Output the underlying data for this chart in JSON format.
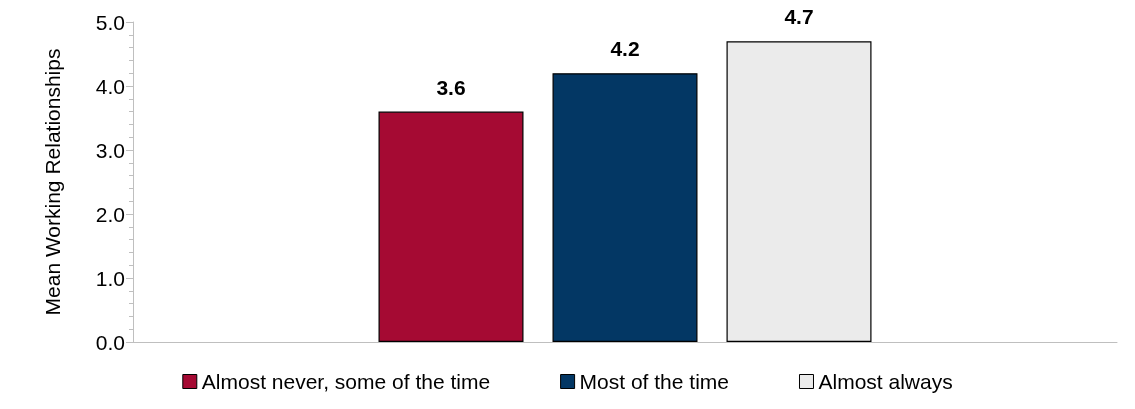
{
  "chart_data": {
    "type": "bar",
    "ylabel": "Mean Working Relationships",
    "categories": [
      null
    ],
    "series": [
      {
        "name": "Almost never, some of the time",
        "color": "#a50a33",
        "values": [
          3.6
        ]
      },
      {
        "name": "Most of the time",
        "color": "#033764",
        "values": [
          4.2
        ]
      },
      {
        "name": "Almost always",
        "color": "#ebebeb",
        "values": [
          4.7
        ]
      }
    ],
    "ylim": [
      0,
      5
    ],
    "yticks": [
      {
        "value": 0,
        "label": "0.0"
      },
      {
        "value": 1,
        "label": "1.0"
      },
      {
        "value": 2,
        "label": "2.0"
      },
      {
        "value": 3,
        "label": "3.0"
      },
      {
        "value": 4,
        "label": "4.0"
      },
      {
        "value": 5,
        "label": "5.0"
      }
    ],
    "data_labels": true,
    "legend": "bottom",
    "grid": false
  }
}
